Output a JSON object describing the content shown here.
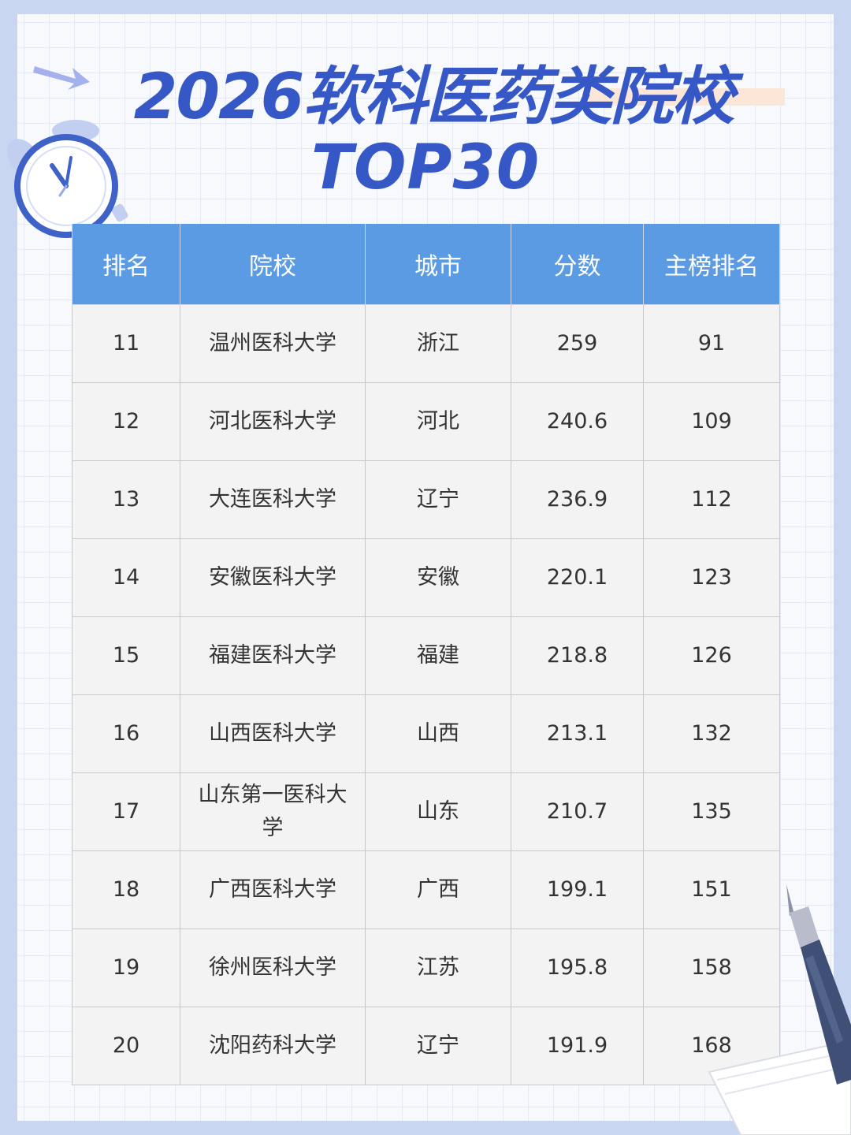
{
  "header": {
    "title_line1": "2026软科医药类院校",
    "title_line2": "TOP30"
  },
  "icons": {
    "arrow": "arrow-right-icon",
    "clock": "alarm-clock-icon",
    "pen": "fountain-pen-icon"
  },
  "colors": {
    "title": "#3658c7",
    "header_bg": "#5b9be4",
    "row_bg": "#f3f3f4",
    "page_bg": "#c9d6f2"
  },
  "table": {
    "headers": [
      "排名",
      "院校",
      "城市",
      "分数",
      "主榜排名"
    ],
    "rows": [
      [
        "11",
        "温州医科大学",
        "浙江",
        "259",
        "91"
      ],
      [
        "12",
        "河北医科大学",
        "河北",
        "240.6",
        "109"
      ],
      [
        "13",
        "大连医科大学",
        "辽宁",
        "236.9",
        "112"
      ],
      [
        "14",
        "安徽医科大学",
        "安徽",
        "220.1",
        "123"
      ],
      [
        "15",
        "福建医科大学",
        "福建",
        "218.8",
        "126"
      ],
      [
        "16",
        "山西医科大学",
        "山西",
        "213.1",
        "132"
      ],
      [
        "17",
        "山东第一医科大学",
        "山东",
        "210.7",
        "135"
      ],
      [
        "18",
        "广西医科大学",
        "广西",
        "199.1",
        "151"
      ],
      [
        "19",
        "徐州医科大学",
        "江苏",
        "195.8",
        "158"
      ],
      [
        "20",
        "沈阳药科大学",
        "辽宁",
        "191.9",
        "168"
      ]
    ]
  }
}
